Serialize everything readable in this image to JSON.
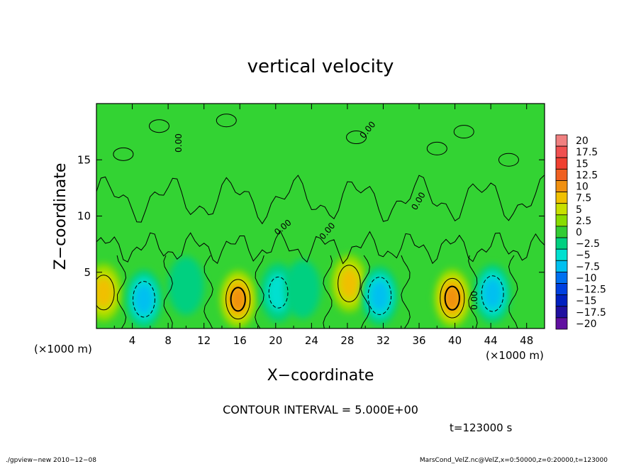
{
  "chart_data": {
    "type": "heatmap",
    "title": "vertical velocity",
    "xlabel": "X−coordinate",
    "ylabel": "Z−coordinate",
    "x_unit": "(×1000 m)",
    "y_unit": "(×1000 m)",
    "xlim": [
      0,
      50
    ],
    "ylim": [
      0,
      20
    ],
    "x_ticks": [
      "4",
      "8",
      "12",
      "16",
      "20",
      "24",
      "28",
      "32",
      "36",
      "40",
      "44",
      "48"
    ],
    "y_ticks": [
      "5",
      "10",
      "15"
    ],
    "contour_interval_text": "CONTOUR INTERVAL = 5.000E+00",
    "time_text": "t=123000 s",
    "zero_contour_label": "0.00",
    "colorbar": {
      "labels": [
        "20",
        "17.5",
        "15",
        "12.5",
        "10",
        "7.5",
        "5",
        "2.5",
        "0",
        "−2.5",
        "−5",
        "−7.5",
        "−10",
        "−12.5",
        "−15",
        "−17.5",
        "−20"
      ],
      "colors": [
        "#f08080",
        "#f05050",
        "#f04030",
        "#f06020",
        "#f09010",
        "#f0c000",
        "#c8e000",
        "#88dc00",
        "#33cc33",
        "#00d080",
        "#00e0d0",
        "#00c0f0",
        "#0070f0",
        "#0040e0",
        "#0020c0",
        "#2010a0",
        "#6010a0"
      ]
    },
    "features": [
      {
        "x": 0.8,
        "z": 3.2,
        "value": 7.5
      },
      {
        "x": 5.3,
        "z": 2.6,
        "value": -8.0
      },
      {
        "x": 10.0,
        "z": 3.8,
        "value": -3.0
      },
      {
        "x": 15.8,
        "z": 2.6,
        "value": 10.5
      },
      {
        "x": 20.3,
        "z": 3.2,
        "value": -6.0
      },
      {
        "x": 23.0,
        "z": 3.5,
        "value": -3.5
      },
      {
        "x": 28.2,
        "z": 4.0,
        "value": 8.5
      },
      {
        "x": 31.6,
        "z": 2.9,
        "value": -9.0
      },
      {
        "x": 39.7,
        "z": 2.7,
        "value": 10.5
      },
      {
        "x": 44.2,
        "z": 3.1,
        "value": -8.0
      }
    ]
  },
  "footer": {
    "left": "./gpview−new  2010−12−08",
    "right": "MarsCond_VelZ.nc@VelZ,x=0:50000,z=0:20000,t=123000"
  }
}
